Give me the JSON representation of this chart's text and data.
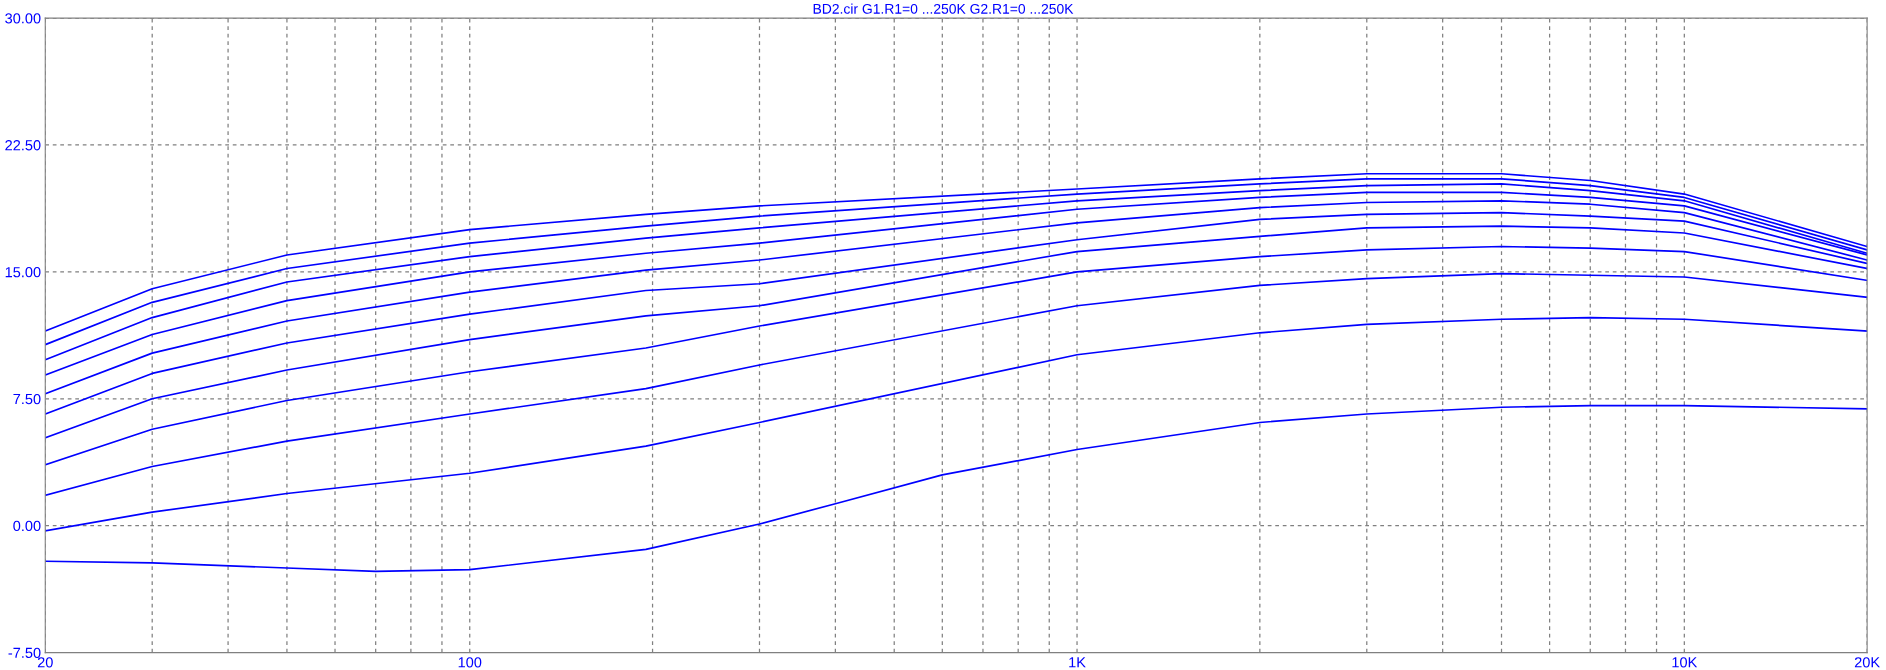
{
  "chart_data": {
    "type": "line",
    "title": "BD2.cir G1.R1=0 ...250K G2.R1=0 ...250K",
    "log": "x",
    "grid": true,
    "line_style": "solid",
    "marker": "none",
    "x": [
      20,
      30,
      50,
      100,
      195,
      300,
      1000,
      2000,
      3000,
      5000,
      7000,
      10000,
      20000
    ],
    "xlim": [
      20,
      20000
    ],
    "xticks": [
      {
        "value": 20,
        "label": "20"
      },
      {
        "value": 30,
        "label": null
      },
      {
        "value": 40,
        "label": null
      },
      {
        "value": 50,
        "label": null
      },
      {
        "value": 60,
        "label": null
      },
      {
        "value": 70,
        "label": null
      },
      {
        "value": 80,
        "label": null
      },
      {
        "value": 90,
        "label": null
      },
      {
        "value": 100,
        "label": "100"
      },
      {
        "value": 200,
        "label": null
      },
      {
        "value": 300,
        "label": null
      },
      {
        "value": 400,
        "label": null
      },
      {
        "value": 500,
        "label": null
      },
      {
        "value": 600,
        "label": null
      },
      {
        "value": 700,
        "label": null
      },
      {
        "value": 800,
        "label": null
      },
      {
        "value": 900,
        "label": null
      },
      {
        "value": 1000,
        "label": "1K"
      },
      {
        "value": 2000,
        "label": null
      },
      {
        "value": 3000,
        "label": null
      },
      {
        "value": 4000,
        "label": null
      },
      {
        "value": 5000,
        "label": null
      },
      {
        "value": 6000,
        "label": null
      },
      {
        "value": 7000,
        "label": null
      },
      {
        "value": 8000,
        "label": null
      },
      {
        "value": 9000,
        "label": null
      },
      {
        "value": 10000,
        "label": "10K"
      },
      {
        "value": 20000,
        "label": "20K"
      }
    ],
    "ylim": [
      -7.5,
      30
    ],
    "yticks": [
      {
        "value": -7.5,
        "label": "-7.50"
      },
      {
        "value": 0,
        "label": "0.00"
      },
      {
        "value": 7.5,
        "label": "7.50"
      },
      {
        "value": 15,
        "label": "15.00"
      },
      {
        "value": 22.5,
        "label": "22.50"
      },
      {
        "value": 30,
        "label": "30.00"
      }
    ],
    "series": [
      {
        "color": "#0000ff",
        "values": [
          11.5,
          14.0,
          16.0,
          17.5,
          18.4,
          18.9,
          19.9,
          20.5,
          20.8,
          20.8,
          20.4,
          19.6,
          16.5
        ]
      },
      {
        "color": "#0000ff",
        "values": [
          10.7,
          13.2,
          15.2,
          16.7,
          17.7,
          18.3,
          19.6,
          20.2,
          20.5,
          20.5,
          20.1,
          19.4,
          16.3
        ]
      },
      {
        "color": "#0000ff",
        "values": [
          9.8,
          12.3,
          14.4,
          15.9,
          17.0,
          17.6,
          19.2,
          19.8,
          20.1,
          20.2,
          19.8,
          19.2,
          16.1
        ]
      },
      {
        "color": "#0000ff",
        "values": [
          8.9,
          11.3,
          13.3,
          15.0,
          16.1,
          16.7,
          18.7,
          19.4,
          19.7,
          19.7,
          19.4,
          18.9,
          16.0
        ]
      },
      {
        "color": "#0000ff",
        "values": [
          7.8,
          10.2,
          12.1,
          13.8,
          15.1,
          15.7,
          17.9,
          18.8,
          19.1,
          19.2,
          19.0,
          18.5,
          15.7
        ]
      },
      {
        "color": "#0000ff",
        "values": [
          6.6,
          9.0,
          10.8,
          12.5,
          13.9,
          14.3,
          16.9,
          18.1,
          18.4,
          18.5,
          18.3,
          18.0,
          15.5
        ]
      },
      {
        "color": "#0000ff",
        "values": [
          5.2,
          7.5,
          9.2,
          11.0,
          12.4,
          13.0,
          16.2,
          17.1,
          17.6,
          17.7,
          17.6,
          17.3,
          15.2
        ]
      },
      {
        "color": "#0000ff",
        "values": [
          3.6,
          5.7,
          7.4,
          9.1,
          10.5,
          11.8,
          15.0,
          15.9,
          16.3,
          16.5,
          16.4,
          16.2,
          14.5
        ]
      },
      {
        "color": "#0000ff",
        "values": [
          1.8,
          3.5,
          5.0,
          6.6,
          8.1,
          9.5,
          13.0,
          14.2,
          14.6,
          14.9,
          14.8,
          14.7,
          13.5
        ]
      },
      {
        "color": "#0000ff",
        "values": [
          -0.3,
          0.8,
          1.9,
          3.1,
          4.7,
          6.1,
          10.1,
          11.4,
          11.9,
          12.2,
          12.3,
          12.2,
          11.5
        ]
      },
      {
        "color": "#0000ff",
        "x": [
          20,
          30,
          50,
          70,
          100,
          195,
          300,
          400,
          600,
          1000,
          2000,
          3000,
          5000,
          7000,
          10000,
          20000
        ],
        "values": [
          -2.1,
          -2.2,
          -2.5,
          -2.7,
          -2.6,
          -1.4,
          0.1,
          1.3,
          3.0,
          4.5,
          6.1,
          6.6,
          7.0,
          7.1,
          7.1,
          6.9
        ]
      }
    ]
  }
}
